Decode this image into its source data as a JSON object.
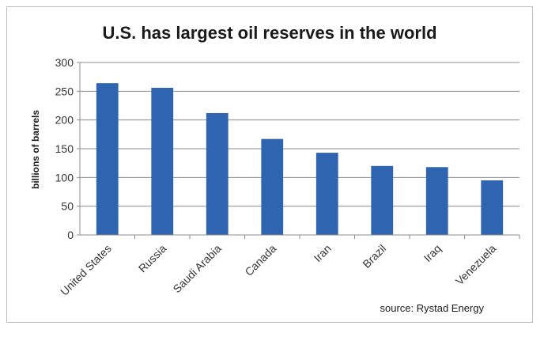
{
  "chart_data": {
    "type": "bar",
    "title": "U.S. has largest oil reserves in the world",
    "xlabel": "",
    "ylabel": "billions of barrels",
    "categories": [
      "United States",
      "Russia",
      "Saudi Arabia",
      "Canada",
      "Iran",
      "Brazil",
      "Iraq",
      "Venezuela"
    ],
    "values": [
      264,
      256,
      212,
      167,
      143,
      120,
      118,
      95
    ],
    "ylim": [
      0,
      300
    ],
    "yticks": [
      0,
      50,
      100,
      150,
      200,
      250,
      300
    ],
    "grid": true,
    "legend": "none",
    "bar_color": "#2e64b0",
    "source": "source: Rystad Energy"
  }
}
